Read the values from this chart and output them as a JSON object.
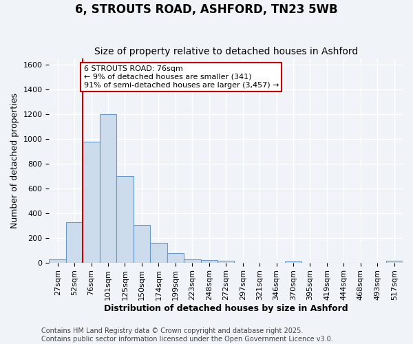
{
  "title": "6, STROUTS ROAD, ASHFORD, TN23 5WB",
  "subtitle": "Size of property relative to detached houses in Ashford",
  "xlabel": "Distribution of detached houses by size in Ashford",
  "ylabel": "Number of detached properties",
  "bin_labels": [
    "27sqm",
    "52sqm",
    "76sqm",
    "101sqm",
    "125sqm",
    "150sqm",
    "174sqm",
    "199sqm",
    "223sqm",
    "248sqm",
    "272sqm",
    "297sqm",
    "321sqm",
    "346sqm",
    "370sqm",
    "395sqm",
    "419sqm",
    "444sqm",
    "468sqm",
    "493sqm",
    "517sqm"
  ],
  "bar_values": [
    25,
    325,
    975,
    1200,
    700,
    305,
    160,
    75,
    25,
    18,
    12,
    0,
    0,
    0,
    8,
    0,
    0,
    0,
    0,
    0,
    12
  ],
  "bar_color": "#ccdcec",
  "bar_edge_color": "#6699cc",
  "vline_color": "#cc0000",
  "annotation_text": "6 STROUTS ROAD: 76sqm\n← 9% of detached houses are smaller (341)\n91% of semi-detached houses are larger (3,457) →",
  "annotation_box_color": "#ffffff",
  "annotation_box_edge": "#cc0000",
  "ylim": [
    0,
    1650
  ],
  "yticks": [
    0,
    200,
    400,
    600,
    800,
    1000,
    1200,
    1400,
    1600
  ],
  "footer": "Contains HM Land Registry data © Crown copyright and database right 2025.\nContains public sector information licensed under the Open Government Licence v3.0.",
  "bg_color": "#f0f4f8",
  "plot_bg_color": "#f0f4f8",
  "grid_color": "#ffffff",
  "title_fontsize": 12,
  "subtitle_fontsize": 10,
  "axis_label_fontsize": 9,
  "tick_fontsize": 8,
  "footer_fontsize": 7,
  "annotation_fontsize": 8
}
